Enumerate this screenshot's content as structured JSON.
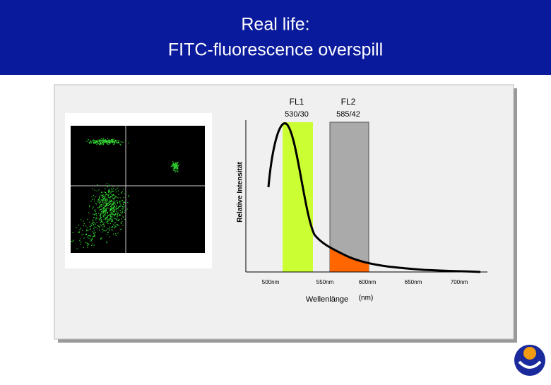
{
  "header": {
    "title_lines": [
      "Real life:",
      "FITC-fluorescence overspill"
    ]
  },
  "spectrum": {
    "channels": [
      {
        "name": "FL1",
        "band": "530/30"
      },
      {
        "name": "FL2",
        "band": "585/42"
      }
    ],
    "y_label": "Relative Intensität",
    "x_label": "Wellenlänge",
    "x_unit": "(nm)",
    "x_ticks": [
      "500nm",
      "550nm",
      "600nm",
      "650nm",
      "700nm"
    ]
  }
}
